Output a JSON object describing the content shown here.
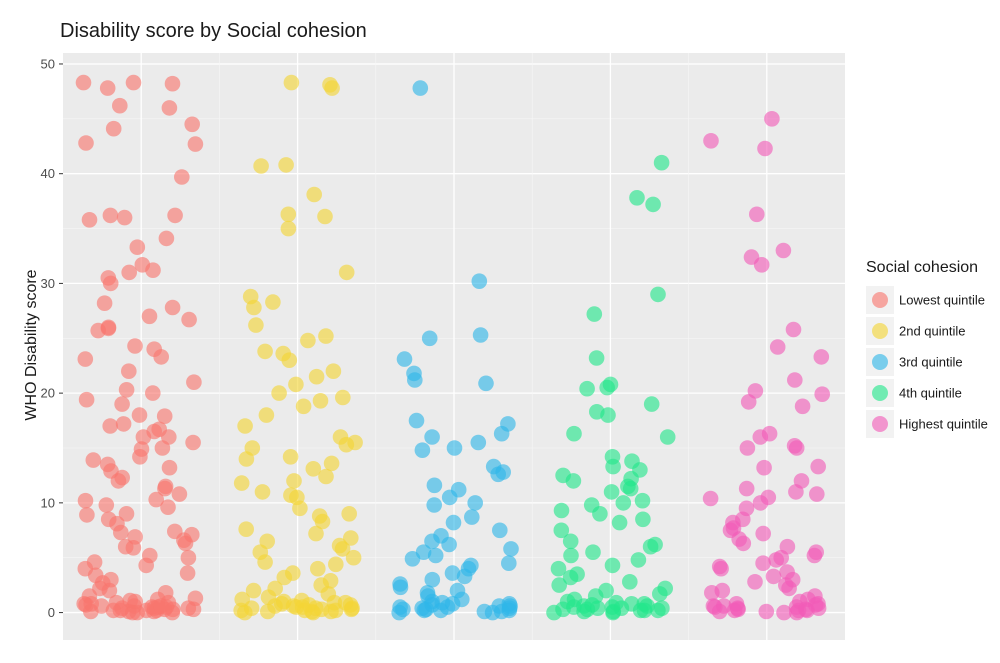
{
  "chart_data": {
    "type": "scatter",
    "title": "Disability score by Social cohesion",
    "xlabel": "",
    "ylabel": "WHO Disability score",
    "ylim": [
      -2.5,
      51
    ],
    "yticks": [
      0,
      10,
      20,
      30,
      40,
      50
    ],
    "legend_title": "Social cohesion",
    "legend_position": "right",
    "grid": true,
    "series": [
      {
        "name": "Lowest quintile",
        "color": "#F8766D",
        "values": [
          48.3,
          48.2,
          48.3,
          47.8,
          46.0,
          46.2,
          44.5,
          44.1,
          42.7,
          42.8,
          39.7,
          36.2,
          36.2,
          36.0,
          35.8,
          34.1,
          33.3,
          31.7,
          31.2,
          31.0,
          30.5,
          30.0,
          28.2,
          27.8,
          27.0,
          26.7,
          26.0,
          25.9,
          25.7,
          24.3,
          24.0,
          23.3,
          23.1,
          22.0,
          21.0,
          20.3,
          20.0,
          19.4,
          19.0,
          18.0,
          17.9,
          17.2,
          17.0,
          16.7,
          16.5,
          16.0,
          16.0,
          15.5,
          15.0,
          14.9,
          14.2,
          13.9,
          13.5,
          13.2,
          12.9,
          12.3,
          12.0,
          11.5,
          11.3,
          10.8,
          10.3,
          10.2,
          9.8,
          9.6,
          9.0,
          8.9,
          8.5,
          8.1,
          7.4,
          7.3,
          7.1,
          6.9,
          6.6,
          6.3,
          6.0,
          5.9,
          5.2,
          5.0,
          4.6,
          4.3,
          4.0,
          3.6,
          3.4,
          3.0,
          2.7,
          2.2,
          2.0,
          1.8,
          1.5,
          1.2,
          1.0,
          0.8,
          0.6,
          0.5,
          0.4,
          0.3,
          0.2,
          0.1,
          0.0,
          0.0,
          0.1,
          0.3,
          0.5,
          0.7,
          0.9,
          0.4,
          0.2,
          0.6,
          0.0,
          0.3,
          1.1,
          0.8,
          0.2,
          0.4,
          0.6,
          1.3,
          0.1,
          0.5,
          0.9,
          0.2
        ]
      },
      {
        "name": "2nd quintile",
        "color": "#F3D536",
        "values": [
          48.3,
          48.1,
          47.8,
          40.8,
          40.7,
          38.1,
          36.3,
          36.1,
          35.0,
          31.0,
          28.8,
          28.3,
          27.8,
          26.2,
          25.2,
          24.8,
          23.8,
          23.6,
          23.0,
          22.0,
          21.5,
          20.8,
          20.0,
          19.6,
          19.3,
          18.8,
          18.0,
          17.0,
          16.0,
          15.5,
          15.3,
          15.0,
          14.2,
          14.0,
          13.6,
          13.1,
          12.4,
          12.0,
          11.8,
          11.0,
          10.7,
          10.5,
          9.5,
          9.0,
          8.8,
          8.3,
          7.6,
          7.2,
          6.8,
          6.5,
          6.1,
          5.8,
          5.5,
          5.0,
          4.6,
          4.4,
          4.0,
          3.6,
          3.2,
          2.9,
          2.5,
          2.2,
          2.0,
          1.7,
          1.4,
          1.1,
          0.9,
          0.6,
          0.4,
          0.2,
          0.0,
          0.1,
          0.3,
          0.5,
          0.7,
          0.2,
          0.4,
          0.6,
          0.0,
          0.8,
          1.0,
          0.3,
          0.5,
          0.1,
          1.2,
          0.7,
          0.2,
          0.4,
          0.9,
          0.1
        ]
      },
      {
        "name": "3rd quintile",
        "color": "#2EB6E8",
        "values": [
          47.8,
          30.2,
          25.3,
          25.0,
          23.1,
          21.8,
          21.2,
          20.9,
          17.5,
          17.2,
          16.3,
          16.0,
          15.5,
          15.0,
          14.8,
          13.3,
          12.8,
          12.6,
          11.6,
          11.2,
          10.5,
          10.0,
          9.8,
          8.7,
          8.2,
          7.5,
          7.0,
          6.5,
          6.2,
          5.8,
          5.5,
          5.2,
          4.9,
          4.5,
          4.3,
          4.0,
          3.6,
          3.3,
          3.0,
          2.6,
          2.3,
          2.0,
          1.8,
          1.5,
          1.2,
          1.0,
          0.8,
          0.6,
          0.4,
          0.2,
          0.0,
          0.1,
          0.3,
          0.5,
          0.7,
          0.2,
          0.4,
          0.0,
          0.6,
          0.3,
          0.1,
          0.8,
          0.5,
          0.2,
          0.9
        ]
      },
      {
        "name": "4th quintile",
        "color": "#22E68A",
        "values": [
          41.0,
          37.8,
          37.2,
          29.0,
          27.2,
          23.2,
          20.8,
          20.5,
          20.4,
          19.0,
          18.3,
          18.0,
          16.3,
          16.0,
          14.2,
          13.8,
          13.3,
          13.0,
          12.5,
          12.2,
          12.0,
          11.5,
          11.3,
          11.0,
          10.2,
          10.0,
          9.8,
          9.3,
          9.0,
          8.5,
          8.2,
          7.5,
          6.5,
          6.2,
          6.0,
          5.5,
          5.2,
          4.8,
          4.3,
          4.0,
          3.5,
          3.2,
          2.8,
          2.5,
          2.2,
          2.0,
          1.7,
          1.5,
          1.2,
          1.0,
          0.8,
          0.6,
          0.4,
          0.2,
          0.0,
          0.1,
          0.3,
          0.5,
          0.7,
          0.2,
          0.4,
          0.0,
          0.6,
          0.3,
          0.1,
          0.8,
          0.5,
          0.2,
          0.9,
          0.4
        ]
      },
      {
        "name": "Highest quintile",
        "color": "#F25CB8",
        "values": [
          45.0,
          43.0,
          42.3,
          36.3,
          33.0,
          32.4,
          31.7,
          25.8,
          24.2,
          23.3,
          21.2,
          20.2,
          19.9,
          19.2,
          18.8,
          16.3,
          16.0,
          15.2,
          15.0,
          15.0,
          13.3,
          13.2,
          12.0,
          11.3,
          11.0,
          10.8,
          10.5,
          10.4,
          10.0,
          9.5,
          8.5,
          8.2,
          7.7,
          7.5,
          7.2,
          6.7,
          6.3,
          6.0,
          5.5,
          5.2,
          5.0,
          4.8,
          4.5,
          4.2,
          4.0,
          3.7,
          3.3,
          3.0,
          2.8,
          2.5,
          2.2,
          2.0,
          1.8,
          1.5,
          1.2,
          1.0,
          0.8,
          0.6,
          0.4,
          0.2,
          0.0,
          0.1,
          0.3,
          0.5,
          0.7,
          0.2,
          0.4,
          0.0,
          0.6,
          0.3,
          0.1,
          0.8,
          0.5,
          0.2
        ]
      }
    ]
  }
}
